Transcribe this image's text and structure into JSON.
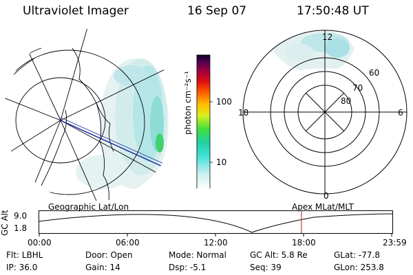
{
  "header": {
    "title": "Ultraviolet Imager",
    "date": "16 Sep 07",
    "time": "17:50:48 UT"
  },
  "colorbar": {
    "unit_label": "photon cm⁻²s⁻¹",
    "ticks": [
      "100",
      "10"
    ]
  },
  "polar_plot": {
    "mlt_labels": {
      "top": "12",
      "left": "18",
      "right": "6",
      "bottom": "0"
    },
    "lat_labels": [
      "60",
      "70",
      "80"
    ]
  },
  "left_panel": {
    "caption": "Geographic Lat/Lon"
  },
  "right_panel": {
    "caption": "Apex MLat/MLT"
  },
  "altitude_plot": {
    "ylabel": "GC Alt",
    "yticks": [
      "9.0",
      "1.8"
    ],
    "xticks": [
      "00:00",
      "06:00",
      "12:00",
      "18:00",
      "23:59"
    ],
    "current_time_fraction": 0.744
  },
  "info": {
    "flt": "Flt: LBHL",
    "door": "Door: Open",
    "mode": "Mode: Normal",
    "gc_alt": "GC Alt: 5.8 Re",
    "glat": "GLat: -77.8",
    "ip": "IP: 36.0",
    "gain": "Gain: 14",
    "dsp": "Dsp:    -5.1",
    "seq": "Seq: 39",
    "glon": "GLon: 253.8"
  },
  "colors": {
    "aurora_light": "#d8ecec",
    "aurora_cyan": "#a8e4e6",
    "aurora_green": "#40d070",
    "orbit_line": "#1a2a9a",
    "time_marker": "#c04040"
  }
}
